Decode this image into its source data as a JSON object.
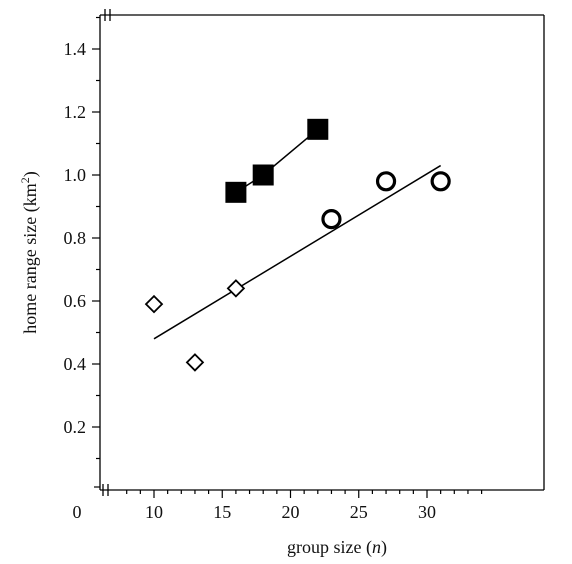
{
  "chart_data": {
    "type": "scatter",
    "title": "",
    "xlabel": {
      "prefix": "group size (",
      "italic": "n",
      "suffix": ")"
    },
    "ylabel": {
      "prefix": "home range size (km",
      "superscript": "2",
      "suffix": ")"
    },
    "xlim": [
      6.5,
      34.2
    ],
    "ylim": [
      0,
      1.5
    ],
    "x_ticks": [
      10,
      15,
      20,
      25,
      30
    ],
    "x_tick_labels": [
      "10",
      "15",
      "20",
      "25",
      "30"
    ],
    "x_zero_label": "0",
    "y_ticks": [
      0.2,
      0.4,
      0.6,
      0.8,
      1.0,
      1.2,
      1.4
    ],
    "y_tick_labels": [
      "0.2",
      "0.4",
      "0.6",
      "0.8",
      "1.0",
      "1.2",
      "1.4"
    ],
    "grid": false,
    "axis_breaks": true,
    "series": [
      {
        "marker": "diamond",
        "filled": false,
        "points": [
          {
            "x": 10,
            "y": 0.59
          },
          {
            "x": 13,
            "y": 0.405
          },
          {
            "x": 16,
            "y": 0.64
          }
        ]
      },
      {
        "marker": "circle",
        "filled": false,
        "points": [
          {
            "x": 23,
            "y": 0.86
          },
          {
            "x": 27,
            "y": 0.98
          },
          {
            "x": 31,
            "y": 0.98
          }
        ]
      },
      {
        "marker": "square",
        "filled": true,
        "connected": true,
        "points": [
          {
            "x": 16,
            "y": 0.945
          },
          {
            "x": 18,
            "y": 1.0
          },
          {
            "x": 22,
            "y": 1.145
          }
        ]
      }
    ],
    "fit_lines": [
      {
        "name": "open-symbols-fit",
        "x": [
          10,
          31
        ],
        "y": [
          0.48,
          1.03
        ]
      }
    ],
    "colors": {
      "ink": "#000000",
      "background": "#ffffff"
    }
  }
}
